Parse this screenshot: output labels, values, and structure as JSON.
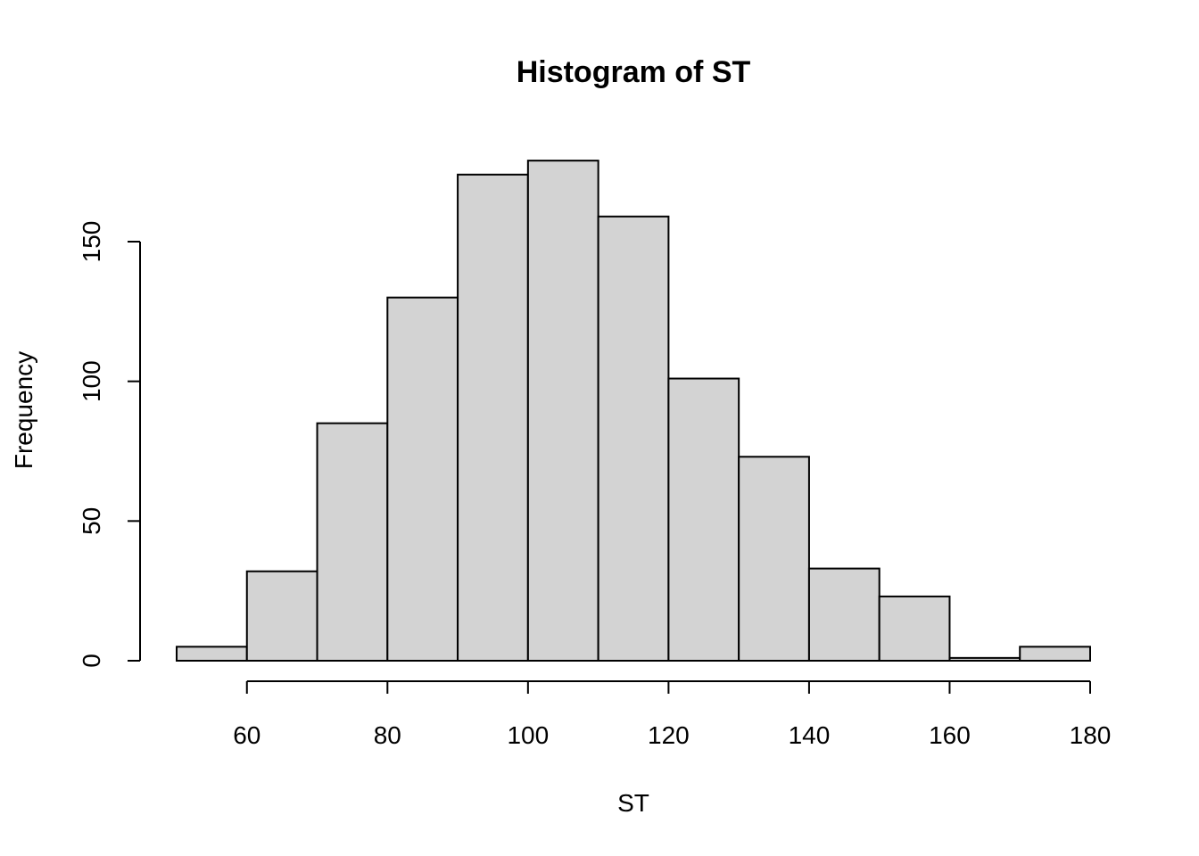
{
  "chart_data": {
    "type": "bar",
    "title": "Histogram of ST",
    "xlabel": "ST",
    "ylabel": "Frequency",
    "bins": [
      {
        "from": 50,
        "to": 60,
        "count": 5
      },
      {
        "from": 60,
        "to": 70,
        "count": 32
      },
      {
        "from": 70,
        "to": 80,
        "count": 85
      },
      {
        "from": 80,
        "to": 90,
        "count": 130
      },
      {
        "from": 90,
        "to": 100,
        "count": 174
      },
      {
        "from": 100,
        "to": 110,
        "count": 179
      },
      {
        "from": 110,
        "to": 120,
        "count": 159
      },
      {
        "from": 120,
        "to": 130,
        "count": 101
      },
      {
        "from": 130,
        "to": 140,
        "count": 73
      },
      {
        "from": 140,
        "to": 150,
        "count": 33
      },
      {
        "from": 150,
        "to": 160,
        "count": 23
      },
      {
        "from": 160,
        "to": 170,
        "count": 1
      },
      {
        "from": 170,
        "to": 180,
        "count": 5
      }
    ],
    "x_ticks": [
      60,
      80,
      100,
      120,
      140,
      160,
      180
    ],
    "y_ticks": [
      0,
      50,
      100,
      150
    ],
    "x_tick_labels": [
      "60",
      "80",
      "100",
      "120",
      "140",
      "160",
      "180"
    ],
    "y_tick_labels": [
      "0",
      "50",
      "100",
      "150"
    ],
    "grid": false,
    "legend": "none",
    "colors": {
      "bar_fill": "#d3d3d3",
      "bar_stroke": "#000000"
    }
  }
}
